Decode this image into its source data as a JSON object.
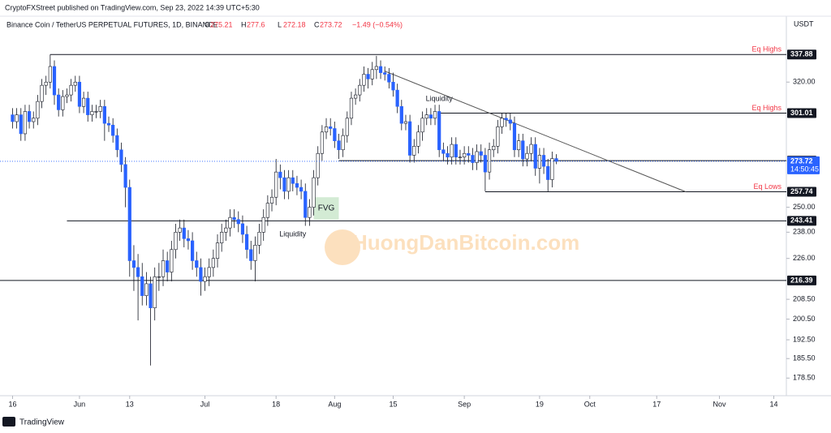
{
  "publisher": "CryptoFXStreet published on TradingView.com, Sep 23, 2022 14:39 UTC+5:30",
  "footer": "TradingView",
  "watermark": "HuongDanBitcoin.com",
  "chart_data": {
    "type": "candlestick",
    "title": "Binance Coin / TetherUS PERPETUAL FUTURES, 1D, BINANCE",
    "ohlc_labels": [
      "O",
      "H",
      "L",
      "C"
    ],
    "change": "−1.49 (−0.54%)",
    "unit": "USDT",
    "countdown": "14:50:45",
    "up_color": "#ffffff",
    "down_color": "#2962ff",
    "wick_color": "#131722",
    "log_scale": true,
    "grid": false,
    "x": [
      "2022-05-16",
      "2022-05-17",
      "2022-05-18",
      "2022-05-19",
      "2022-05-20",
      "2022-05-21",
      "2022-05-22",
      "2022-05-23",
      "2022-05-24",
      "2022-05-25",
      "2022-05-26",
      "2022-05-27",
      "2022-05-28",
      "2022-05-29",
      "2022-05-30",
      "2022-05-31",
      "2022-06-01",
      "2022-06-02",
      "2022-06-03",
      "2022-06-04",
      "2022-06-05",
      "2022-06-06",
      "2022-06-07",
      "2022-06-08",
      "2022-06-09",
      "2022-06-10",
      "2022-06-11",
      "2022-06-12",
      "2022-06-13",
      "2022-06-14",
      "2022-06-15",
      "2022-06-16",
      "2022-06-17",
      "2022-06-18",
      "2022-06-19",
      "2022-06-20",
      "2022-06-21",
      "2022-06-22",
      "2022-06-23",
      "2022-06-24",
      "2022-06-25",
      "2022-06-26",
      "2022-06-27",
      "2022-06-28",
      "2022-06-29",
      "2022-06-30",
      "2022-07-01",
      "2022-07-02",
      "2022-07-03",
      "2022-07-04",
      "2022-07-05",
      "2022-07-06",
      "2022-07-07",
      "2022-07-08",
      "2022-07-09",
      "2022-07-10",
      "2022-07-11",
      "2022-07-12",
      "2022-07-13",
      "2022-07-14",
      "2022-07-15",
      "2022-07-16",
      "2022-07-17",
      "2022-07-18",
      "2022-07-19",
      "2022-07-20",
      "2022-07-21",
      "2022-07-22",
      "2022-07-23",
      "2022-07-24",
      "2022-07-25",
      "2022-07-26",
      "2022-07-27",
      "2022-07-28",
      "2022-07-29",
      "2022-07-30",
      "2022-07-31",
      "2022-08-01",
      "2022-08-02",
      "2022-08-03",
      "2022-08-04",
      "2022-08-05",
      "2022-08-06",
      "2022-08-07",
      "2022-08-08",
      "2022-08-09",
      "2022-08-10",
      "2022-08-11",
      "2022-08-12",
      "2022-08-13",
      "2022-08-14",
      "2022-08-15",
      "2022-08-16",
      "2022-08-17",
      "2022-08-18",
      "2022-08-19",
      "2022-08-20",
      "2022-08-21",
      "2022-08-22",
      "2022-08-23",
      "2022-08-24",
      "2022-08-25",
      "2022-08-26",
      "2022-08-27",
      "2022-08-28",
      "2022-08-29",
      "2022-08-30",
      "2022-08-31",
      "2022-09-01",
      "2022-09-02",
      "2022-09-03",
      "2022-09-04",
      "2022-09-05",
      "2022-09-06",
      "2022-09-07",
      "2022-09-08",
      "2022-09-09",
      "2022-09-10",
      "2022-09-11",
      "2022-09-12",
      "2022-09-13",
      "2022-09-14",
      "2022-09-15",
      "2022-09-16",
      "2022-09-17",
      "2022-09-18",
      "2022-09-19",
      "2022-09-20",
      "2022-09-21",
      "2022-09-22",
      "2022-09-23"
    ],
    "open": [
      300,
      296,
      300,
      289,
      302,
      296,
      298,
      308,
      318,
      320,
      330,
      312,
      303,
      311,
      312,
      318,
      320,
      305,
      310,
      300,
      302,
      302,
      305,
      295,
      294,
      288,
      280,
      272,
      260,
      225,
      222,
      218,
      210,
      215,
      205,
      218,
      218,
      225,
      220,
      230,
      238,
      240,
      235,
      234,
      225,
      222,
      216,
      218,
      222,
      226,
      233,
      238,
      240,
      245,
      244,
      242,
      237,
      230,
      225,
      232,
      238,
      245,
      252,
      255,
      268,
      265,
      258,
      265,
      262,
      260,
      258,
      245,
      250,
      265,
      278,
      290,
      293,
      292,
      285,
      280,
      288,
      298,
      310,
      312,
      318,
      325,
      322,
      328,
      330,
      326,
      325,
      320,
      315,
      305,
      295,
      296,
      277,
      282,
      290,
      298,
      300,
      298,
      302,
      280,
      278,
      276,
      283,
      276,
      276,
      278,
      277,
      273,
      279,
      277,
      268,
      280,
      282,
      293,
      298,
      297,
      295,
      280,
      285,
      275,
      278,
      283,
      270,
      277,
      271,
      264,
      275.21
    ],
    "high": [
      304,
      304,
      304,
      306,
      306,
      302,
      312,
      322,
      324,
      337.88,
      334,
      316,
      315,
      316,
      322,
      324,
      324,
      314,
      314,
      306,
      306,
      309,
      309,
      299,
      298,
      292,
      284,
      276,
      264,
      232,
      228,
      224,
      220,
      218,
      222,
      224,
      230,
      229,
      234,
      242,
      244,
      244,
      239,
      238,
      229,
      226,
      222,
      226,
      230,
      237,
      242,
      244,
      249,
      249,
      248,
      246,
      241,
      234,
      236,
      242,
      249,
      256,
      259,
      275,
      272,
      269,
      269,
      269,
      266,
      264,
      262,
      254,
      269,
      282,
      294,
      298,
      298,
      296,
      289,
      292,
      302,
      314,
      316,
      322,
      330,
      329,
      333,
      337,
      334,
      330,
      329,
      326,
      319,
      309,
      300,
      300,
      286,
      294,
      302,
      304,
      304,
      306,
      306,
      284,
      282,
      287,
      287,
      280,
      282,
      282,
      281,
      283,
      283,
      281,
      284,
      286,
      297,
      301.01,
      301,
      301,
      299,
      289,
      289,
      282,
      287,
      287,
      281,
      281,
      275,
      279,
      277.6
    ],
    "low": [
      292,
      292,
      285,
      285,
      292,
      292,
      294,
      304,
      312,
      316,
      306,
      299,
      299,
      307,
      308,
      314,
      301,
      301,
      296,
      296,
      298,
      298,
      285,
      290,
      284,
      276,
      268,
      250,
      218,
      212,
      200,
      206,
      206,
      183,
      200,
      212,
      214,
      216,
      216,
      226,
      234,
      231,
      230,
      221,
      218,
      210,
      212,
      214,
      218,
      222,
      229,
      234,
      236,
      240,
      238,
      233,
      226,
      221,
      216,
      228,
      234,
      241,
      248,
      251,
      259,
      254,
      254,
      258,
      256,
      254,
      241,
      241,
      246,
      261,
      274,
      286,
      288,
      281,
      275,
      276,
      284,
      294,
      306,
      308,
      314,
      316,
      318,
      322,
      322,
      321,
      316,
      311,
      301,
      291,
      291,
      273,
      273,
      278,
      285,
      294,
      294,
      294,
      276,
      274,
      272,
      272,
      272,
      272,
      272,
      273,
      269,
      269,
      273,
      258,
      264,
      276,
      278,
      289,
      293,
      291,
      276,
      276,
      271,
      271,
      274,
      266,
      262,
      267,
      257.74,
      260,
      272.18
    ],
    "close": [
      296,
      300,
      289,
      302,
      296,
      298,
      308,
      318,
      320,
      330,
      312,
      303,
      311,
      312,
      318,
      320,
      305,
      310,
      300,
      302,
      302,
      305,
      295,
      294,
      288,
      280,
      272,
      260,
      225,
      222,
      218,
      210,
      215,
      205,
      218,
      218,
      225,
      220,
      230,
      238,
      240,
      235,
      234,
      225,
      222,
      216,
      218,
      222,
      226,
      233,
      238,
      240,
      245,
      244,
      242,
      237,
      230,
      225,
      232,
      238,
      245,
      252,
      255,
      268,
      265,
      258,
      265,
      262,
      260,
      258,
      245,
      250,
      265,
      278,
      290,
      293,
      292,
      285,
      280,
      288,
      298,
      310,
      312,
      318,
      325,
      322,
      328,
      330,
      326,
      325,
      320,
      315,
      305,
      295,
      296,
      277,
      282,
      290,
      298,
      300,
      298,
      302,
      280,
      278,
      276,
      283,
      276,
      276,
      278,
      277,
      273,
      279,
      277,
      268,
      280,
      282,
      293,
      298,
      297,
      295,
      280,
      285,
      275,
      278,
      283,
      270,
      277,
      271,
      264,
      275.21,
      273.72
    ],
    "xlim": [
      "2022-05-13",
      "2022-11-17"
    ],
    "xticks": [
      {
        "value": "2022-05-16",
        "label": "16"
      },
      {
        "value": "2022-06-01",
        "label": "Jun"
      },
      {
        "value": "2022-06-13",
        "label": "13"
      },
      {
        "value": "2022-07-01",
        "label": "Jul"
      },
      {
        "value": "2022-07-18",
        "label": "18"
      },
      {
        "value": "2022-08-01",
        "label": "Aug"
      },
      {
        "value": "2022-08-15",
        "label": "15"
      },
      {
        "value": "2022-09-01",
        "label": "Sep"
      },
      {
        "value": "2022-09-19",
        "label": "19"
      },
      {
        "value": "2022-10-01",
        "label": "Oct"
      },
      {
        "value": "2022-10-17",
        "label": "17"
      },
      {
        "value": "2022-11-01",
        "label": "Nov"
      },
      {
        "value": "2022-11-14",
        "label": "14"
      }
    ],
    "ylim": [
      172.4,
      364.4
    ],
    "yticks": [
      {
        "value": 178.5,
        "label": "178.50"
      },
      {
        "value": 185.5,
        "label": "185.50"
      },
      {
        "value": 192.5,
        "label": "192.50"
      },
      {
        "value": 200.5,
        "label": "200.50"
      },
      {
        "value": 208.5,
        "label": "208.50"
      },
      {
        "value": 226,
        "label": "226.00"
      },
      {
        "value": 238,
        "label": "238.00"
      },
      {
        "value": 250,
        "label": "250.00"
      },
      {
        "value": 320,
        "label": "320.00"
      }
    ],
    "levels": [
      {
        "price": 337.88,
        "note": "Eq Highs",
        "from": "2022-05-25"
      },
      {
        "price": 301.01,
        "note": "Eq Highs",
        "from": "2022-08-26"
      },
      {
        "price": 274.09,
        "from": "2022-08-02"
      },
      {
        "price": 257.74,
        "note": "Eq Lows",
        "from": "2022-09-06"
      },
      {
        "price": 243.41,
        "from": "2022-05-29"
      },
      {
        "price": 216.39,
        "from": "2022-05-13"
      }
    ],
    "trendline": {
      "from": [
        "2022-08-13",
        327
      ],
      "to": [
        "2022-10-24",
        257.7
      ]
    },
    "annotations": [
      {
        "text": "Liquidity",
        "x": "2022-08-26",
        "price": 309.6
      },
      {
        "text": "Liquidity",
        "x": "2022-07-22",
        "price": 237
      }
    ],
    "fvg": {
      "label": "FVG",
      "from": "2022-07-27",
      "to": "2022-08-02",
      "low": 244,
      "high": 255
    }
  }
}
